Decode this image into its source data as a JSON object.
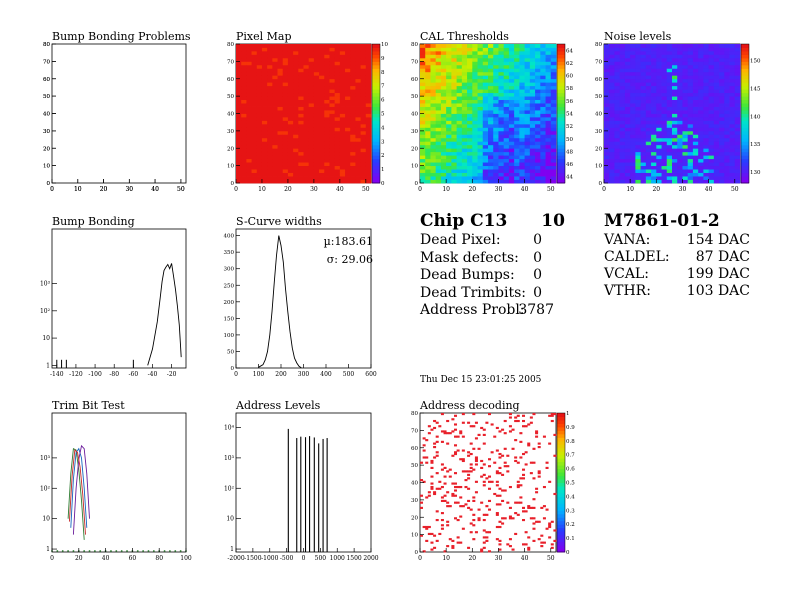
{
  "panels": [
    {
      "id": "bump-problems",
      "title": "Bump Bonding Problems"
    },
    {
      "id": "pixel-map",
      "title": "Pixel Map"
    },
    {
      "id": "cal-thresholds",
      "title": "CAL Thresholds"
    },
    {
      "id": "noise-levels",
      "title": "Noise levels"
    },
    {
      "id": "bump-bonding",
      "title": "Bump Bonding"
    },
    {
      "id": "s-curve",
      "title": "S-Curve widths"
    },
    {
      "id": "trim-bit",
      "title": "Trim Bit Test"
    },
    {
      "id": "address-levels",
      "title": "Address Levels"
    },
    {
      "id": "address-decoding",
      "title": "Address decoding"
    }
  ],
  "chip": {
    "name": "Chip C13",
    "number": "10",
    "rows": [
      {
        "label": "Dead Pixel:",
        "value": "0"
      },
      {
        "label": "Mask defects:",
        "value": "0"
      },
      {
        "label": "Dead Bumps:",
        "value": "0"
      },
      {
        "label": "Dead Trimbits:",
        "value": "0"
      },
      {
        "label": "Address Probl:",
        "value": "3787"
      }
    ]
  },
  "module": {
    "name": "M7861-01-2",
    "rows": [
      {
        "label": "VANA:",
        "value": "154 DAC"
      },
      {
        "label": "CALDEL:",
        "value": "87 DAC"
      },
      {
        "label": "VCAL:",
        "value": "199 DAC"
      },
      {
        "label": "VTHR:",
        "value": "103 DAC"
      }
    ]
  },
  "timestamp": "Thu Dec 15 23:01:25 2005",
  "colors": {
    "axis": "#000000",
    "marker": "#e8202a"
  },
  "chart_data": [
    {
      "id": "bump-problems",
      "type": "heatmap",
      "title": "Bump Bonding Problems",
      "xlim": [
        0,
        52
      ],
      "ylim": [
        0,
        80
      ],
      "xticks": [
        "0",
        "10",
        "20",
        "30",
        "40",
        "50"
      ],
      "yticks": [
        "0",
        "10",
        "20",
        "30",
        "40",
        "50",
        "60",
        "70",
        "80"
      ],
      "values": "empty"
    },
    {
      "id": "pixel-map",
      "type": "heatmap",
      "title": "Pixel Map",
      "xlim": [
        0,
        52
      ],
      "ylim": [
        0,
        80
      ],
      "xticks": [
        "0",
        "10",
        "20",
        "30",
        "40",
        "50"
      ],
      "yticks": [
        "0",
        "10",
        "20",
        "30",
        "40",
        "50",
        "60",
        "70",
        "80"
      ],
      "zlim": [
        0,
        10
      ],
      "zticks": [
        "0",
        "1",
        "2",
        "3",
        "4",
        "5",
        "6",
        "7",
        "8",
        "9",
        "10"
      ],
      "value_all_pixels": 10
    },
    {
      "id": "cal-thresholds",
      "type": "heatmap",
      "title": "CAL Thresholds",
      "xlim": [
        0,
        52
      ],
      "ylim": [
        0,
        80
      ],
      "xticks": [
        "0",
        "10",
        "20",
        "30",
        "40",
        "50"
      ],
      "yticks": [
        "0",
        "10",
        "20",
        "30",
        "40",
        "50",
        "60",
        "70",
        "80"
      ],
      "zlim": [
        43,
        65
      ],
      "zticks": [
        "44",
        "46",
        "48",
        "50",
        "52",
        "54",
        "56",
        "58",
        "60",
        "62",
        "64"
      ],
      "description": "higher thresholds toward top-left corner, lower toward bottom-right"
    },
    {
      "id": "noise-levels",
      "type": "heatmap",
      "title": "Noise levels",
      "xlim": [
        0,
        52
      ],
      "ylim": [
        0,
        80
      ],
      "xticks": [
        "0",
        "10",
        "20",
        "30",
        "40",
        "50"
      ],
      "yticks": [
        "0",
        "10",
        "20",
        "30",
        "40",
        "50",
        "60",
        "70",
        "80"
      ],
      "zlim": [
        128,
        153
      ],
      "zticks": [
        "130",
        "135",
        "140",
        "145",
        "150"
      ],
      "description": "mostly low (~130); scattered higher values around x≈20-30, y<30"
    },
    {
      "id": "bump-bonding",
      "type": "line",
      "title": "Bump Bonding",
      "yscale": "log",
      "xlim": [
        -145,
        -5
      ],
      "ylim": [
        0.8,
        100000
      ],
      "xticks": [
        "-140",
        "-120",
        "-100",
        "-80",
        "-60",
        "-40",
        "-20"
      ],
      "yticks": [
        "1",
        "10",
        "10²",
        "10³"
      ],
      "x": [
        -140,
        -135,
        -130,
        -60,
        -45,
        -40,
        -35,
        -32,
        -30,
        -28,
        -26,
        -24,
        -22,
        -20,
        -18,
        -16,
        -14,
        -12,
        -10
      ],
      "y": [
        1,
        1,
        1,
        1,
        1,
        4,
        40,
        300,
        1200,
        3000,
        4000,
        5000,
        3500,
        5500,
        1800,
        600,
        150,
        30,
        2
      ]
    },
    {
      "id": "s-curve",
      "type": "line",
      "title": "S-Curve widths",
      "xlim": [
        0,
        600
      ],
      "ylim": [
        0,
        420
      ],
      "xticks": [
        "0",
        "100",
        "200",
        "300",
        "400",
        "500",
        "600"
      ],
      "yticks": [
        "0",
        "50",
        "100",
        "150",
        "200",
        "250",
        "300",
        "350",
        "400"
      ],
      "stats": {
        "mean": "µ:183.61",
        "sigma": "σ: 29.06"
      },
      "x": [
        100,
        120,
        130,
        140,
        150,
        160,
        170,
        180,
        190,
        200,
        210,
        220,
        230,
        240,
        250,
        260,
        270,
        280,
        290
      ],
      "y": [
        2,
        10,
        25,
        50,
        100,
        170,
        260,
        340,
        400,
        370,
        320,
        240,
        170,
        110,
        60,
        30,
        15,
        5,
        1
      ]
    },
    {
      "id": "trim-bit",
      "type": "line",
      "title": "Trim Bit Test",
      "yscale": "log",
      "xlim": [
        0,
        100
      ],
      "ylim": [
        0.8,
        30000
      ],
      "xticks": [
        "0",
        "20",
        "40",
        "60",
        "80",
        "100"
      ],
      "yticks": [
        "1",
        "10",
        "10²",
        "10³"
      ],
      "series": [
        {
          "color": "#2e7d32",
          "x": [
            12,
            14,
            16,
            18,
            20,
            22,
            24
          ],
          "y": [
            10,
            300,
            2000,
            1800,
            400,
            40,
            2
          ]
        },
        {
          "color": "#1565c0",
          "x": [
            14,
            16,
            18,
            20,
            22,
            24,
            26
          ],
          "y": [
            5,
            200,
            1500,
            2000,
            1000,
            100,
            5
          ]
        },
        {
          "color": "#6a1b9a",
          "x": [
            16,
            18,
            20,
            22,
            24,
            26,
            28
          ],
          "y": [
            3,
            100,
            900,
            2500,
            2000,
            300,
            10
          ]
        },
        {
          "color": "#c62828",
          "x": [
            13,
            15,
            17,
            19,
            21,
            23,
            25
          ],
          "y": [
            8,
            250,
            1800,
            1500,
            500,
            60,
            3
          ]
        }
      ]
    },
    {
      "id": "address-levels",
      "type": "bar",
      "title": "Address Levels",
      "yscale": "log",
      "xlim": [
        -2000,
        2000
      ],
      "ylim": [
        0.8,
        30000
      ],
      "xticks": [
        "-2000",
        "-1500",
        "-1000",
        "-500",
        "0",
        "500",
        "1000",
        "1500",
        "2000"
      ],
      "yticks": [
        "1",
        "10",
        "10²",
        "10³",
        "10⁴"
      ],
      "x": [
        -450,
        -200,
        -80,
        60,
        180,
        320,
        450,
        580,
        700
      ],
      "y": [
        9000,
        4500,
        5000,
        4800,
        5200,
        4700,
        3000,
        4200,
        4500
      ]
    },
    {
      "id": "address-decoding",
      "type": "heatmap",
      "title": "Address decoding",
      "xlim": [
        0,
        52
      ],
      "ylim": [
        0,
        80
      ],
      "xticks": [
        "0",
        "10",
        "20",
        "30",
        "40",
        "50"
      ],
      "yticks": [
        "0",
        "10",
        "20",
        "30",
        "40",
        "50",
        "60",
        "70",
        "80"
      ],
      "zlim": [
        0,
        1
      ],
      "zticks": [
        "0",
        "0.1",
        "0.2",
        "0.3",
        "0.4",
        "0.5",
        "0.6",
        "0.7",
        "0.8",
        "0.9",
        "1"
      ],
      "description": "binary map; scattered failing pixels (value 1) across the chip"
    }
  ]
}
